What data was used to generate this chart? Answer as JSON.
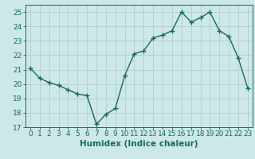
{
  "x": [
    0,
    1,
    2,
    3,
    4,
    5,
    6,
    7,
    8,
    9,
    10,
    11,
    12,
    13,
    14,
    15,
    16,
    17,
    18,
    19,
    20,
    21,
    22,
    23
  ],
  "y": [
    21.1,
    20.4,
    20.1,
    19.9,
    19.6,
    19.3,
    19.2,
    17.2,
    17.9,
    18.3,
    20.6,
    22.1,
    22.3,
    23.2,
    23.4,
    23.7,
    25.0,
    24.3,
    24.6,
    25.0,
    23.7,
    23.3,
    21.8,
    19.7
  ],
  "line_color": "#1a6b5a",
  "marker": "+",
  "marker_size": 5,
  "line_width": 1.0,
  "bg_color": "#cce8e8",
  "grid_color": "#b8cccc",
  "xlabel": "Humidex (Indice chaleur)",
  "ylabel": "",
  "xlim": [
    -0.5,
    23.5
  ],
  "ylim": [
    17,
    25.5
  ],
  "yticks": [
    17,
    18,
    19,
    20,
    21,
    22,
    23,
    24,
    25
  ],
  "xticks": [
    0,
    1,
    2,
    3,
    4,
    5,
    6,
    7,
    8,
    9,
    10,
    11,
    12,
    13,
    14,
    15,
    16,
    17,
    18,
    19,
    20,
    21,
    22,
    23
  ],
  "tick_color": "#1a6b5a",
  "label_color": "#1a6b5a",
  "xlabel_fontsize": 7.5,
  "tick_fontsize": 6.5
}
